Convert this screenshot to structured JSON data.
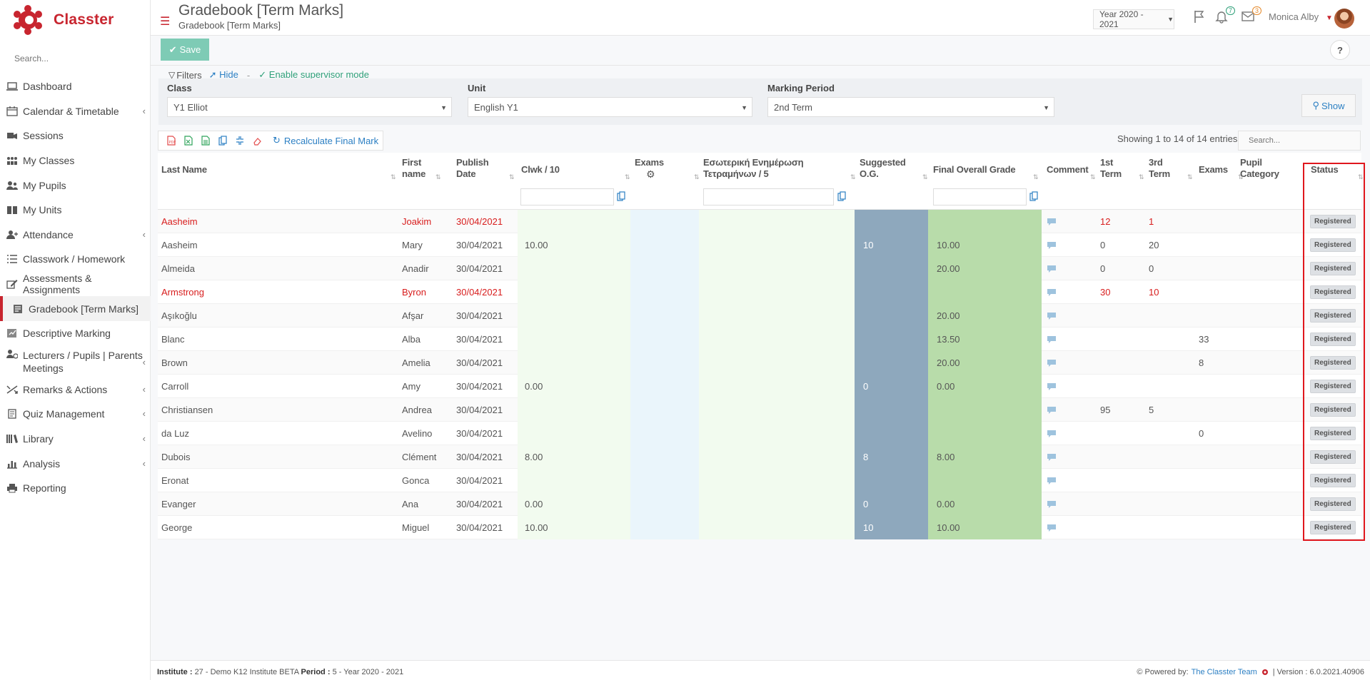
{
  "app": {
    "name": "Classter"
  },
  "sidebar": {
    "search_placeholder": "Search...",
    "items": [
      {
        "label": "Dashboard",
        "icon": "laptop-icon",
        "has_children": false
      },
      {
        "label": "Calendar & Timetable",
        "icon": "calendar-icon",
        "has_children": true
      },
      {
        "label": "Sessions",
        "icon": "sessions-icon",
        "has_children": false
      },
      {
        "label": "My Classes",
        "icon": "classes-icon",
        "has_children": false
      },
      {
        "label": "My Pupils",
        "icon": "pupils-icon",
        "has_children": false
      },
      {
        "label": "My Units",
        "icon": "book-icon",
        "has_children": false
      },
      {
        "label": "Attendance",
        "icon": "attendance-icon",
        "has_children": true
      },
      {
        "label": "Classwork / Homework",
        "icon": "list-icon",
        "has_children": false
      },
      {
        "label": "Assessments & Assignments",
        "icon": "edit-icon",
        "has_children": false
      },
      {
        "label": "Gradebook [Term Marks]",
        "icon": "gradebook-icon",
        "has_children": false,
        "active": true
      },
      {
        "label": "Descriptive Marking",
        "icon": "marking-icon",
        "has_children": false
      },
      {
        "label": "Lecturers / Pupils | Parents Meetings",
        "icon": "meeting-icon",
        "has_children": true
      },
      {
        "label": "Remarks & Actions",
        "icon": "remarks-icon",
        "has_children": true
      },
      {
        "label": "Quiz Management",
        "icon": "quiz-icon",
        "has_children": true
      },
      {
        "label": "Library",
        "icon": "library-icon",
        "has_children": true
      },
      {
        "label": "Analysis",
        "icon": "analysis-icon",
        "has_children": true
      },
      {
        "label": "Reporting",
        "icon": "printer-icon",
        "has_children": false
      }
    ]
  },
  "header": {
    "title": "Gradebook [Term Marks]",
    "subtitle": "Gradebook [Term Marks]",
    "year": "Year 2020 - 2021",
    "notifications_count": "7",
    "messages_count": "3",
    "user_name": "Monica Alby"
  },
  "toolbar": {
    "save_label": "Save",
    "help_label": "?"
  },
  "filters": {
    "filters_label": "Filters",
    "hide_label": "Hide",
    "separator": "-",
    "supervisor_label": "Enable supervisor mode",
    "class_label": "Class",
    "class_value": "Y1 Elliot",
    "unit_label": "Unit",
    "unit_value": "English Y1",
    "period_label": "Marking Period",
    "period_value": "2nd Term",
    "show_label": "Show"
  },
  "table_tools": {
    "recalc_label": "Recalculate Final Mark",
    "showing_text": "Showing 1 to 14 of 14 entries",
    "search_placeholder": "Search..."
  },
  "table": {
    "headers": {
      "last_name": "Last Name",
      "first_name": "First name",
      "publish_date": "Publish Date",
      "clwk": "Clwk / 10",
      "exams": "Exams",
      "internal": "Εσωτερική Ενημέρωση Τετραμήνων / 5",
      "suggested": "Suggested O.G.",
      "final": "Final Overall Grade",
      "comment": "Comment",
      "term1": "1st Term",
      "term3": "3rd Term",
      "exams2": "Exams",
      "category": "Pupil Category",
      "status": "Status"
    },
    "rows": [
      {
        "last": "Aasheim",
        "first": "Joakim",
        "date": "30/04/2021",
        "clwk": "",
        "suggested": "",
        "final": "",
        "t1": "12",
        "t3": "1",
        "exams": "",
        "status": "Registered",
        "highlight": true
      },
      {
        "last": "Aasheim",
        "first": "Mary",
        "date": "30/04/2021",
        "clwk": "10.00",
        "suggested": "10",
        "final": "10.00",
        "t1": "0",
        "t3": "20",
        "exams": "",
        "status": "Registered",
        "highlight": false
      },
      {
        "last": "Almeida",
        "first": "Anadir",
        "date": "30/04/2021",
        "clwk": "",
        "suggested": "",
        "final": "20.00",
        "t1": "0",
        "t3": "0",
        "exams": "",
        "status": "Registered",
        "highlight": false
      },
      {
        "last": "Armstrong",
        "first": "Byron",
        "date": "30/04/2021",
        "clwk": "",
        "suggested": "",
        "final": "",
        "t1": "30",
        "t3": "10",
        "exams": "",
        "status": "Registered",
        "highlight": true
      },
      {
        "last": "Aşıkoğlu",
        "first": "Afşar",
        "date": "30/04/2021",
        "clwk": "",
        "suggested": "",
        "final": "20.00",
        "t1": "",
        "t3": "",
        "exams": "",
        "status": "Registered",
        "highlight": false
      },
      {
        "last": "Blanc",
        "first": "Alba",
        "date": "30/04/2021",
        "clwk": "",
        "suggested": "",
        "final": "13.50",
        "t1": "",
        "t3": "",
        "exams": "33",
        "status": "Registered",
        "highlight": false
      },
      {
        "last": "Brown",
        "first": "Amelia",
        "date": "30/04/2021",
        "clwk": "",
        "suggested": "",
        "final": "20.00",
        "t1": "",
        "t3": "",
        "exams": "8",
        "status": "Registered",
        "highlight": false
      },
      {
        "last": "Carroll",
        "first": "Amy",
        "date": "30/04/2021",
        "clwk": "0.00",
        "suggested": "0",
        "final": "0.00",
        "t1": "",
        "t3": "",
        "exams": "",
        "status": "Registered",
        "highlight": false
      },
      {
        "last": "Christiansen",
        "first": "Andrea",
        "date": "30/04/2021",
        "clwk": "",
        "suggested": "",
        "final": "",
        "t1": "95",
        "t3": "5",
        "exams": "",
        "status": "Registered",
        "highlight": false
      },
      {
        "last": "da Luz",
        "first": "Avelino",
        "date": "30/04/2021",
        "clwk": "",
        "suggested": "",
        "final": "",
        "t1": "",
        "t3": "",
        "exams": "0",
        "status": "Registered",
        "highlight": false
      },
      {
        "last": "Dubois",
        "first": "Clément",
        "date": "30/04/2021",
        "clwk": "8.00",
        "suggested": "8",
        "final": "8.00",
        "t1": "",
        "t3": "",
        "exams": "",
        "status": "Registered",
        "highlight": false
      },
      {
        "last": "Eronat",
        "first": "Gonca",
        "date": "30/04/2021",
        "clwk": "",
        "suggested": "",
        "final": "",
        "t1": "",
        "t3": "",
        "exams": "",
        "status": "Registered",
        "highlight": false
      },
      {
        "last": "Evanger",
        "first": "Ana",
        "date": "30/04/2021",
        "clwk": "0.00",
        "suggested": "0",
        "final": "0.00",
        "t1": "",
        "t3": "",
        "exams": "",
        "status": "Registered",
        "highlight": false
      },
      {
        "last": "George",
        "first": "Miguel",
        "date": "30/04/2021",
        "clwk": "10.00",
        "suggested": "10",
        "final": "10.00",
        "t1": "",
        "t3": "",
        "exams": "",
        "status": "Registered",
        "highlight": false
      }
    ]
  },
  "footer": {
    "institute_label": "Institute :",
    "institute_value": "27 - Demo K12 Institute BETA",
    "period_label": "Period :",
    "period_value": "5 - Year 2020 - 2021",
    "powered_label": "Powered by:",
    "powered_link": "The Classter Team",
    "version_text": "| Version : 6.0.2021.40906"
  },
  "colors": {
    "brand": "#c8252f",
    "accent_blue": "#2b7fc3",
    "save_green": "#7ecbb5",
    "final_green": "#b8dcaa",
    "suggested_blue": "#8ea8bd",
    "highlight_outline": "#e0171d"
  }
}
